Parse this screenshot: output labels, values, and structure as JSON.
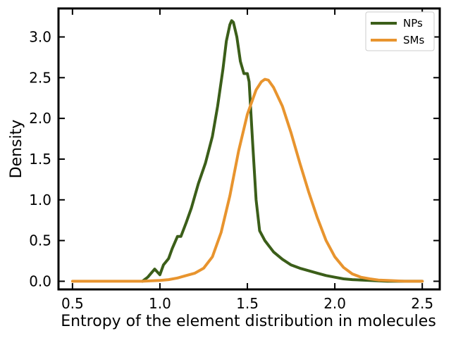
{
  "chart_data": {
    "type": "line",
    "title": "",
    "xlabel": "Entropy of the element distribution in molecules",
    "ylabel": "Density",
    "xlim": [
      0.42,
      2.6
    ],
    "ylim": [
      -0.1,
      3.35
    ],
    "x_ticks": [
      0.5,
      1.0,
      1.5,
      2.0,
      2.5
    ],
    "x_tick_labels": [
      "0.5",
      "1.0",
      "1.5",
      "2.0",
      "2.5"
    ],
    "y_ticks": [
      0.0,
      0.5,
      1.0,
      1.5,
      2.0,
      2.5,
      3.0
    ],
    "y_tick_labels": [
      "0.0",
      "0.5",
      "1.0",
      "1.5",
      "2.0",
      "2.5",
      "3.0"
    ],
    "grid": false,
    "legend_position": "top-right",
    "series": [
      {
        "name": "NPs",
        "color": "#3b5e19",
        "x": [
          0.9,
          0.93,
          0.95,
          0.97,
          1.0,
          1.02,
          1.05,
          1.07,
          1.1,
          1.12,
          1.15,
          1.18,
          1.22,
          1.26,
          1.3,
          1.33,
          1.36,
          1.38,
          1.4,
          1.41,
          1.42,
          1.44,
          1.46,
          1.48,
          1.5,
          1.51,
          1.53,
          1.55,
          1.57,
          1.6,
          1.65,
          1.7,
          1.75,
          1.8,
          1.85,
          1.9,
          1.95,
          2.0,
          2.05,
          2.1,
          2.2,
          2.3,
          2.4,
          2.5
        ],
        "y": [
          0.0,
          0.05,
          0.1,
          0.15,
          0.08,
          0.2,
          0.28,
          0.4,
          0.55,
          0.55,
          0.72,
          0.9,
          1.2,
          1.45,
          1.78,
          2.15,
          2.6,
          2.95,
          3.15,
          3.2,
          3.18,
          3.0,
          2.7,
          2.55,
          2.55,
          2.45,
          1.7,
          1.0,
          0.62,
          0.5,
          0.36,
          0.27,
          0.2,
          0.16,
          0.13,
          0.1,
          0.07,
          0.05,
          0.03,
          0.02,
          0.01,
          0.0,
          0.0,
          0.0
        ]
      },
      {
        "name": "SMs",
        "color": "#e8942e",
        "x": [
          0.5,
          0.7,
          0.9,
          1.0,
          1.05,
          1.1,
          1.15,
          1.2,
          1.25,
          1.3,
          1.35,
          1.4,
          1.45,
          1.5,
          1.55,
          1.58,
          1.6,
          1.62,
          1.65,
          1.7,
          1.75,
          1.8,
          1.85,
          1.9,
          1.95,
          2.0,
          2.05,
          2.1,
          2.15,
          2.2,
          2.25,
          2.3,
          2.4,
          2.5
        ],
        "y": [
          0.0,
          0.0,
          0.0,
          0.01,
          0.02,
          0.04,
          0.07,
          0.1,
          0.16,
          0.3,
          0.6,
          1.05,
          1.6,
          2.05,
          2.35,
          2.45,
          2.48,
          2.47,
          2.38,
          2.15,
          1.82,
          1.45,
          1.1,
          0.78,
          0.5,
          0.3,
          0.17,
          0.09,
          0.05,
          0.03,
          0.015,
          0.01,
          0.0,
          0.0
        ]
      }
    ]
  }
}
